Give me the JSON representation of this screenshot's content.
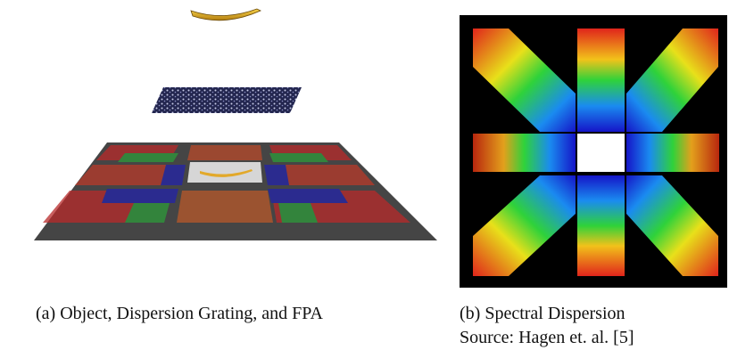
{
  "figure": {
    "panels": [
      {
        "caption": "(a) Object, Dispersion Grating, and FPA"
      },
      {
        "caption": "(b) Spectral Dispersion",
        "source": "Source: Hagen et. al. [5]"
      }
    ]
  }
}
